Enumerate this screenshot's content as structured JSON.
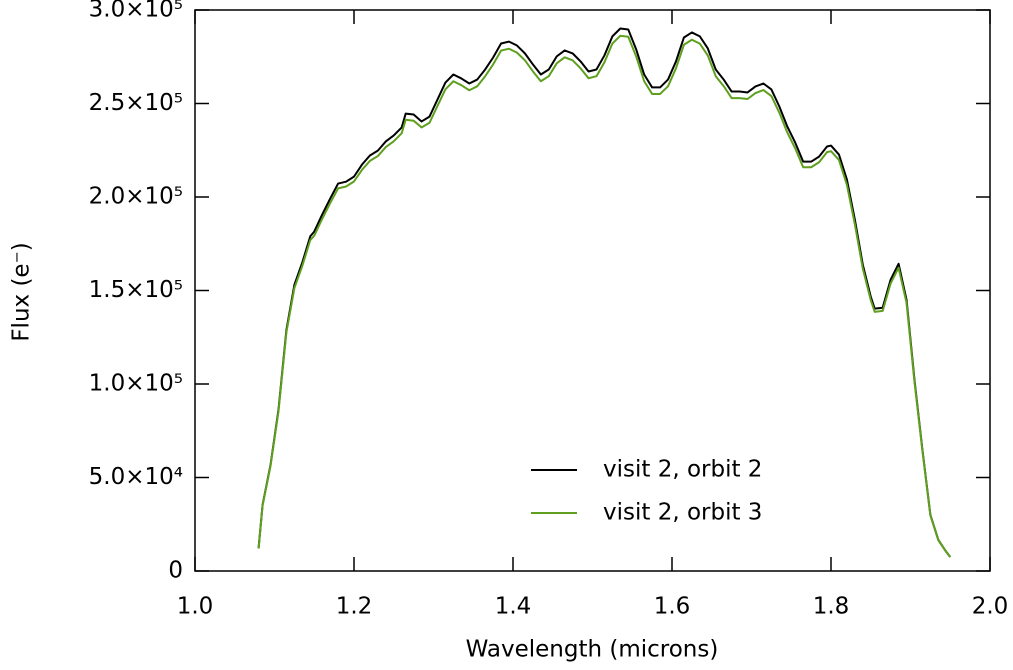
{
  "chart_data": {
    "type": "line",
    "xlabel": "Wavelength (microns)",
    "ylabel": "Flux (e⁻)",
    "xlim": [
      1.0,
      2.0
    ],
    "xticks": [
      {
        "value": 1,
        "label": "1.0"
      },
      1.2,
      1.4,
      1.6,
      1.8,
      {
        "value": 2,
        "label": "2.0"
      }
    ],
    "ylim": [
      0,
      300000
    ],
    "yticks": [
      0,
      {
        "value": 50000,
        "label": "5.0×10⁴"
      },
      {
        "value": 100000,
        "label": "1.0×10⁵"
      },
      {
        "value": 150000,
        "label": "1.5×10⁵"
      },
      {
        "value": 200000,
        "label": "2.0×10⁵"
      },
      {
        "value": 250000,
        "label": "2.5×10⁵"
      },
      {
        "value": 300000,
        "label": "3.0×10⁵"
      }
    ],
    "legend": "lower right",
    "x": [
      1.08,
      1.085,
      1.095,
      1.105,
      1.115,
      1.125,
      1.135,
      1.145,
      1.15,
      1.16,
      1.17,
      1.18,
      1.19,
      1.2,
      1.21,
      1.22,
      1.23,
      1.24,
      1.25,
      1.26,
      1.265,
      1.275,
      1.285,
      1.295,
      1.305,
      1.315,
      1.325,
      1.335,
      1.345,
      1.355,
      1.365,
      1.375,
      1.385,
      1.395,
      1.405,
      1.415,
      1.425,
      1.435,
      1.445,
      1.455,
      1.465,
      1.475,
      1.485,
      1.495,
      1.505,
      1.515,
      1.525,
      1.535,
      1.545,
      1.555,
      1.565,
      1.575,
      1.585,
      1.595,
      1.605,
      1.615,
      1.625,
      1.635,
      1.645,
      1.655,
      1.665,
      1.675,
      1.685,
      1.695,
      1.705,
      1.715,
      1.725,
      1.735,
      1.745,
      1.755,
      1.765,
      1.775,
      1.785,
      1.795,
      1.8,
      1.81,
      1.82,
      1.83,
      1.84,
      1.85,
      1.855,
      1.865,
      1.875,
      1.885,
      1.895,
      1.905,
      1.915,
      1.925,
      1.935,
      1.945,
      1.95
    ],
    "series": [
      {
        "name": "visit 2, orbit 2",
        "color": "#000000",
        "values": [
          12300,
          35300,
          56700,
          86200,
          129000,
          153000,
          165000,
          179000,
          181500,
          190600,
          199100,
          207200,
          208200,
          210900,
          217300,
          222200,
          224800,
          229700,
          232900,
          237200,
          244600,
          244100,
          240400,
          243000,
          252100,
          261200,
          265500,
          263400,
          260700,
          262800,
          268200,
          274600,
          282100,
          283100,
          281000,
          276800,
          270900,
          265500,
          268200,
          275200,
          278400,
          276800,
          272500,
          267100,
          268200,
          275700,
          285900,
          290100,
          289600,
          278900,
          265500,
          258600,
          258600,
          262800,
          272500,
          285300,
          288000,
          285900,
          279500,
          268200,
          262800,
          256400,
          256400,
          255900,
          259100,
          260700,
          257500,
          248400,
          237700,
          229100,
          218900,
          218900,
          221600,
          227000,
          227500,
          222700,
          209300,
          187900,
          163800,
          146700,
          140300,
          140800,
          155800,
          164300,
          145100,
          102200,
          64800,
          30000,
          16600,
          10200,
          7500
        ]
      },
      {
        "name": "visit 2, orbit 3",
        "color": "#5ea01e",
        "values": [
          12000,
          35000,
          56200,
          85300,
          127700,
          151300,
          163200,
          177000,
          179300,
          188300,
          196700,
          204600,
          205600,
          208300,
          214500,
          219300,
          221900,
          226700,
          229800,
          234100,
          241300,
          240800,
          237200,
          239700,
          248700,
          257600,
          261900,
          259800,
          257100,
          259200,
          264600,
          270900,
          278300,
          279300,
          277200,
          273100,
          267200,
          261900,
          264600,
          271500,
          274700,
          273100,
          268800,
          263500,
          264600,
          272000,
          282100,
          286200,
          285700,
          275100,
          261900,
          255100,
          255100,
          259200,
          268800,
          281400,
          284100,
          282000,
          275700,
          264600,
          259300,
          252900,
          252900,
          252400,
          255600,
          257200,
          254000,
          245100,
          234500,
          226000,
          215900,
          215900,
          218600,
          224000,
          224500,
          219800,
          206500,
          185500,
          161700,
          144900,
          138600,
          139100,
          153800,
          162200,
          143400,
          101100,
          64200,
          29800,
          16500,
          10200,
          7500
        ]
      }
    ]
  }
}
